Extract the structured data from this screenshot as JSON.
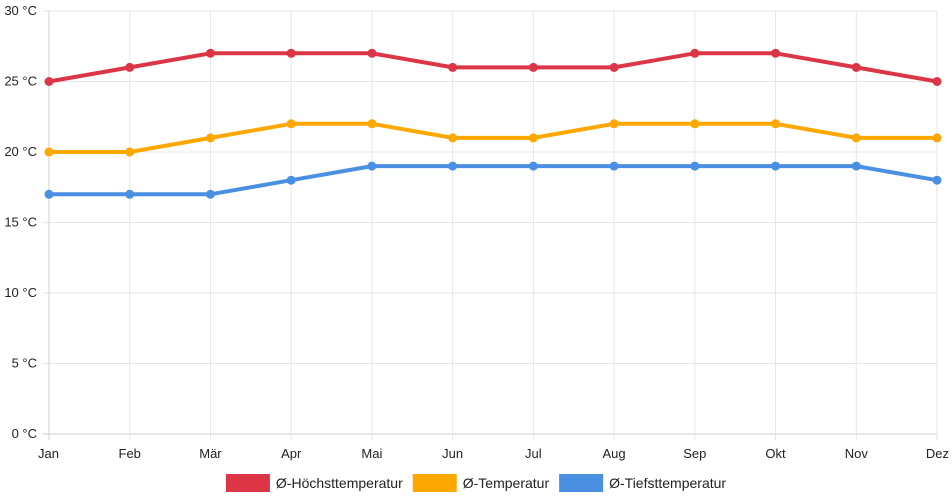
{
  "chart_data": {
    "type": "line",
    "title": "",
    "xlabel": "",
    "ylabel": "",
    "categories": [
      "Jan",
      "Feb",
      "Mär",
      "Apr",
      "Mai",
      "Jun",
      "Jul",
      "Aug",
      "Sep",
      "Okt",
      "Nov",
      "Dez"
    ],
    "ylim": [
      0,
      30
    ],
    "y_ticks": [
      0,
      5,
      10,
      15,
      20,
      25,
      30
    ],
    "y_tick_suffix": " °C",
    "grid": true,
    "legend_position": "bottom",
    "series": [
      {
        "name": "Ø-Höchsttemperatur",
        "color": "#dc3545",
        "values": [
          25,
          26,
          27,
          27,
          27,
          26,
          26,
          26,
          27,
          27,
          26,
          25
        ]
      },
      {
        "name": "Ø-Temperatur",
        "color": "#fca800",
        "values": [
          20,
          20,
          21,
          22,
          22,
          21,
          21,
          22,
          22,
          22,
          21,
          21
        ]
      },
      {
        "name": "Ø-Tiefsttemperatur",
        "color": "#4a90e2",
        "values": [
          17,
          17,
          17,
          18,
          19,
          19,
          19,
          19,
          19,
          19,
          19,
          18
        ]
      }
    ]
  }
}
